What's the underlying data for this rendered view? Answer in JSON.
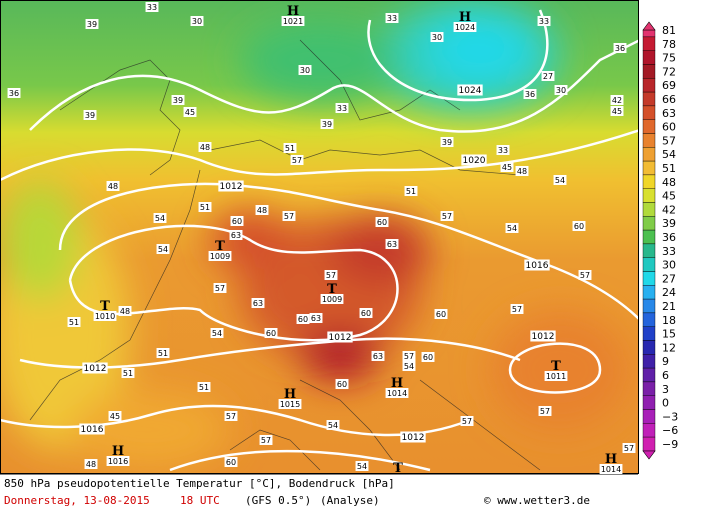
{
  "pressure_centers": [
    {
      "symbol": "H",
      "value": "1021"
    },
    {
      "symbol": "H",
      "value": "1024"
    },
    {
      "symbol": "T",
      "value": "1009"
    },
    {
      "symbol": "T",
      "value": "1009"
    },
    {
      "symbol": "T",
      "value": "1010"
    },
    {
      "symbol": "H",
      "value": "1015"
    },
    {
      "symbol": "H",
      "value": "1014"
    },
    {
      "symbol": "T",
      "value": "1011"
    },
    {
      "symbol": "H",
      "value": "1016"
    },
    {
      "symbol": "H",
      "value": "1014"
    },
    {
      "symbol": "T"
    }
  ],
  "isobar_labels": [
    "1024",
    "1020",
    "1012",
    "1016",
    "1012",
    "1012",
    "1012",
    "1016",
    "1012"
  ],
  "contour_labels": [
    "39",
    "36",
    "39",
    "33",
    "30",
    "30",
    "33",
    "30",
    "33",
    "36",
    "27",
    "30",
    "33",
    "36",
    "42",
    "45",
    "45",
    "39",
    "33",
    "39",
    "48",
    "51",
    "57",
    "39",
    "45",
    "48",
    "54",
    "48",
    "51",
    "57",
    "51",
    "60",
    "57",
    "54",
    "63",
    "48",
    "60",
    "63",
    "54",
    "60",
    "57",
    "54",
    "57",
    "63",
    "57",
    "60",
    "63",
    "60",
    "60",
    "57",
    "48",
    "51",
    "54",
    "51",
    "60",
    "63",
    "57",
    "60",
    "54",
    "60",
    "51",
    "51",
    "57",
    "54",
    "57",
    "54",
    "57",
    "57",
    "57",
    "60",
    "45",
    "48"
  ],
  "colorbar": {
    "labels": [
      "81",
      "78",
      "75",
      "72",
      "69",
      "66",
      "63",
      "60",
      "57",
      "54",
      "51",
      "48",
      "45",
      "42",
      "39",
      "36",
      "33",
      "30",
      "27",
      "24",
      "21",
      "18",
      "15",
      "12",
      "9",
      "6",
      "3",
      "0",
      "−3",
      "−6",
      "−9"
    ],
    "colors": [
      "#e2336f",
      "#c41a32",
      "#b0152b",
      "#a31a25",
      "#b8262a",
      "#c43a2a",
      "#d4502a",
      "#e0682c",
      "#e8822e",
      "#eea032",
      "#f2bc34",
      "#f0d628",
      "#d8e030",
      "#b0da3c",
      "#80cc48",
      "#4cc050",
      "#28b88c",
      "#20c8c0",
      "#20d8e8",
      "#28b0f0",
      "#2888e8",
      "#2464dc",
      "#2040c8",
      "#2828b0",
      "#4020a8",
      "#6020a8",
      "#7a20a8",
      "#9020b0",
      "#a820b8",
      "#c020b8",
      "#d020b0"
    ]
  },
  "footer": {
    "caption": "850 hPa pseudopotentielle Temperatur [°C], Bodendruck [hPa]",
    "date": "Donnerstag, 13-08-2015",
    "time": "18 UTC",
    "model": "(GFS 0.5°)",
    "analysis": "(Analyse)",
    "credit": "© www.wetter3.de"
  }
}
